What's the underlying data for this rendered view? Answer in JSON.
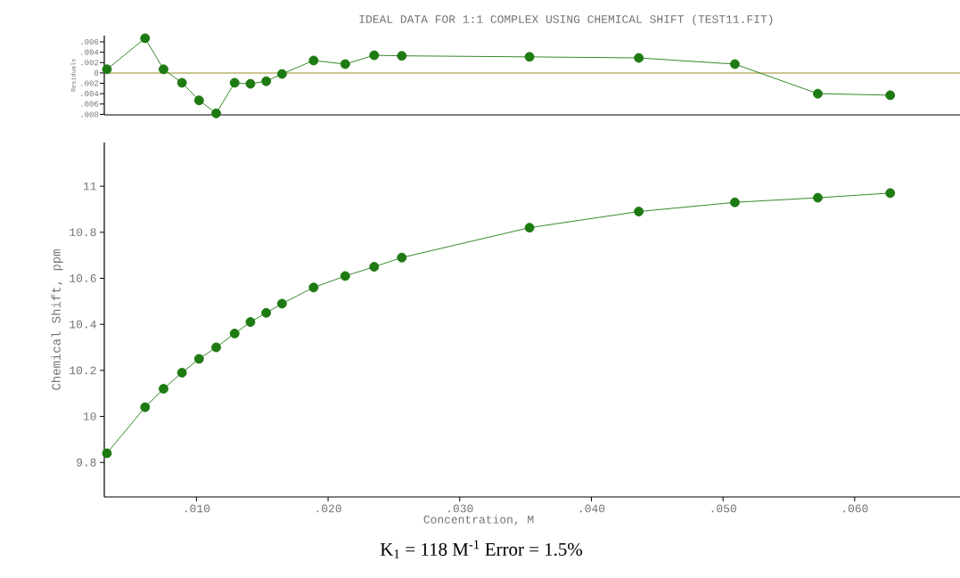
{
  "chart_data": [
    {
      "type": "line",
      "title": "IDEAL DATA FOR 1:1 COMPLEX USING CHEMICAL SHIFT (TEST11.FIT)",
      "ylabel": "Residuals",
      "tick_labels": "y",
      "marker": "circle",
      "line_style": "solid",
      "x": [
        0.0032,
        0.0061,
        0.0075,
        0.0089,
        0.0102,
        0.0115,
        0.0129,
        0.0141,
        0.0153,
        0.0165,
        0.0189,
        0.0213,
        0.0235,
        0.0256,
        0.0353,
        0.0436,
        0.0509,
        0.0572,
        0.0627
      ],
      "series": [
        {
          "color": "#1e7a12",
          "values": [
            0.0007,
            0.0067,
            0.0007,
            -0.0019,
            -0.0053,
            -0.0078,
            -0.0019,
            -0.0021,
            -0.0016,
            -0.0002,
            0.0024,
            0.0017,
            0.0034,
            0.0033,
            0.0031,
            0.0029,
            0.0017,
            -0.004,
            -0.0043
          ]
        }
      ],
      "xlim": [
        0.003,
        0.068
      ],
      "ylim": [
        -0.0081,
        0.0072
      ],
      "yticks": [
        {
          "value": 0.006,
          "label": ".006"
        },
        {
          "value": 0.004,
          "label": ".004"
        },
        {
          "value": 0.002,
          "label": ".002"
        },
        0,
        {
          "value": -0.002,
          "label": ".002"
        },
        {
          "value": -0.004,
          "label": ".004"
        },
        {
          "value": -0.006,
          "label": ".006"
        },
        {
          "value": -0.008,
          "label": ".008"
        }
      ],
      "ref_lines": [
        {
          "axis": "y",
          "value": 0,
          "color": "#b8b46a"
        }
      ]
    },
    {
      "type": "line",
      "xlabel": "Concentration, M",
      "ylabel": "Chemical Shift, ppm",
      "marker": "circle",
      "line_style": "solid",
      "annotations": [
        "K$_{1}$ = 118 M$^{-1}$ Error = 1.5%"
      ],
      "x": [
        0.0032,
        0.0061,
        0.0075,
        0.0089,
        0.0102,
        0.0115,
        0.0129,
        0.0141,
        0.0153,
        0.0165,
        0.0189,
        0.0213,
        0.0235,
        0.0256,
        0.0353,
        0.0436,
        0.0509,
        0.0572,
        0.0627
      ],
      "series": [
        {
          "color": "#1e7a12",
          "values": [
            9.84,
            10.04,
            10.12,
            10.19,
            10.25,
            10.3,
            10.36,
            10.41,
            10.45,
            10.49,
            10.56,
            10.61,
            10.65,
            10.69,
            10.82,
            10.89,
            10.93,
            10.95,
            10.97
          ]
        }
      ],
      "xlim": [
        0.003,
        0.068
      ],
      "ylim": [
        9.65,
        11.19
      ],
      "xticks": [
        {
          "value": 0.01,
          "label": ".010"
        },
        {
          "value": 0.02,
          "label": ".020"
        },
        {
          "value": 0.03,
          "label": ".030"
        },
        {
          "value": 0.04,
          "label": ".040"
        },
        {
          "value": 0.05,
          "label": ".050"
        },
        {
          "value": 0.06,
          "label": ".060"
        }
      ],
      "yticks": [
        9.8,
        10,
        10.2,
        10.4,
        10.6,
        10.8,
        11
      ]
    }
  ]
}
